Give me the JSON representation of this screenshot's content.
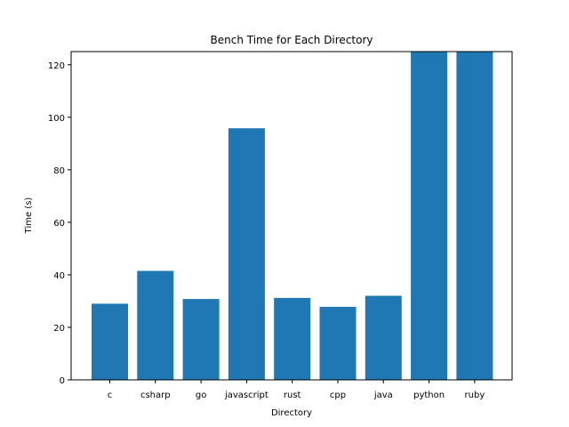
{
  "chart_data": {
    "type": "bar",
    "title": "Bench Time for Each Directory",
    "xlabel": "Directory",
    "ylabel": "Time (s)",
    "categories": [
      "c",
      "csharp",
      "go",
      "javascript",
      "rust",
      "cpp",
      "java",
      "python",
      "ruby"
    ],
    "values": [
      29,
      41.5,
      30.8,
      95.8,
      31.2,
      27.8,
      32,
      125,
      125
    ],
    "ylim": [
      0,
      125
    ],
    "yticks": [
      0,
      20,
      40,
      60,
      80,
      100,
      120
    ],
    "grid": false,
    "bar_color": "#1f77b4"
  }
}
